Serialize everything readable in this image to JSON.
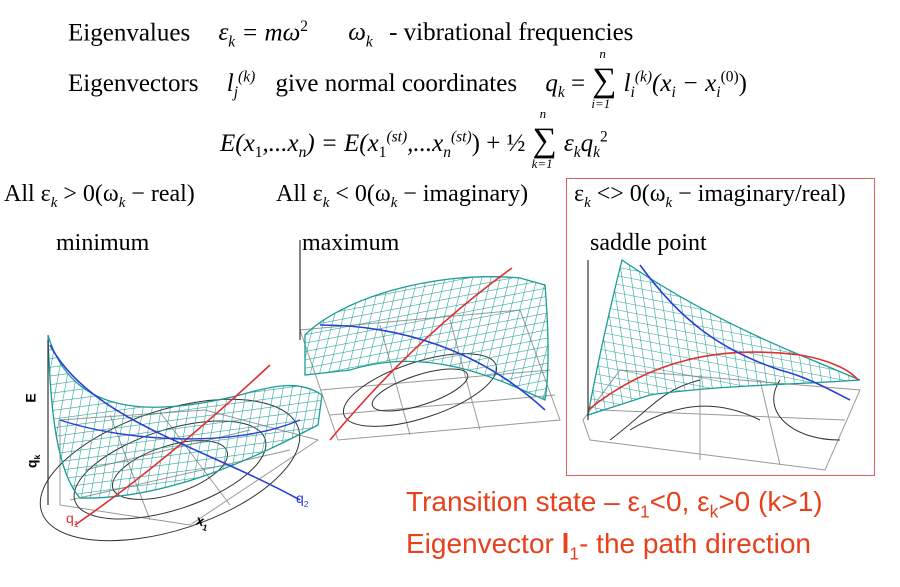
{
  "line1": {
    "label": "Eigenvalues",
    "eps": "ε",
    "k": "k",
    "eq": " = mω",
    "sq": "2",
    "omega": "ω",
    "desc": "- vibrational frequencies"
  },
  "line2": {
    "label": "Eigenvectors",
    "l": "l",
    "j": "j",
    "kk": "(k)",
    "mid": "give normal coordinates",
    "q": "q",
    "k": "k",
    "eq": " = ",
    "sum_top": "n",
    "sum_bot": "i=1",
    "term": "(x",
    "i": "i",
    "minus": " − x",
    "zero": "(0)",
    "close": ")"
  },
  "line3": {
    "lhs": "E(x",
    "one": "1",
    "dots": ",...x",
    "n": "n",
    "eq": ") = E(x",
    "st": "(st)",
    "plus": ") + ½",
    "sum_top": "n",
    "sum_bot": "k=1",
    "tail": "ε",
    "k": "k",
    "q": "q",
    "sq": "2"
  },
  "conditions": [
    {
      "text": "All ε",
      "sub": "k",
      "rest": " > 0(ω",
      "sub2": "k",
      "end": " − real)"
    },
    {
      "text": "All ε",
      "sub": "k",
      "rest": " < 0(ω",
      "sub2": "k",
      "end": " − imaginary)"
    },
    {
      "text": "ε",
      "sub": "k",
      "rest": " <> 0(ω",
      "sub2": "k",
      "end": " − imaginary/real)"
    }
  ],
  "labels": {
    "minimum": "minimum",
    "maximum": "maximum",
    "saddle": "saddle point"
  },
  "axes": {
    "E": "E",
    "q_axis": "q",
    "q_sub": "k",
    "x1": "x",
    "x1_sub": "1",
    "q1": "q",
    "q1_sub": "1",
    "q2": "q",
    "q2_sub": "2"
  },
  "transition": {
    "line1": "Transition state – ε",
    "s1": "1",
    "mid": "<0, ε",
    "sk": "k",
    "end": ">0 (k>1)",
    "line2a": "Eigenvector ",
    "bold": "l",
    "sub": "1",
    "line2b": "- the path direction"
  },
  "colors": {
    "mesh": "#1a9c96",
    "red_text": "#e8401c",
    "frame": "#e0605a",
    "path_red": "#e03030",
    "path_blue": "#2b3fd0"
  }
}
